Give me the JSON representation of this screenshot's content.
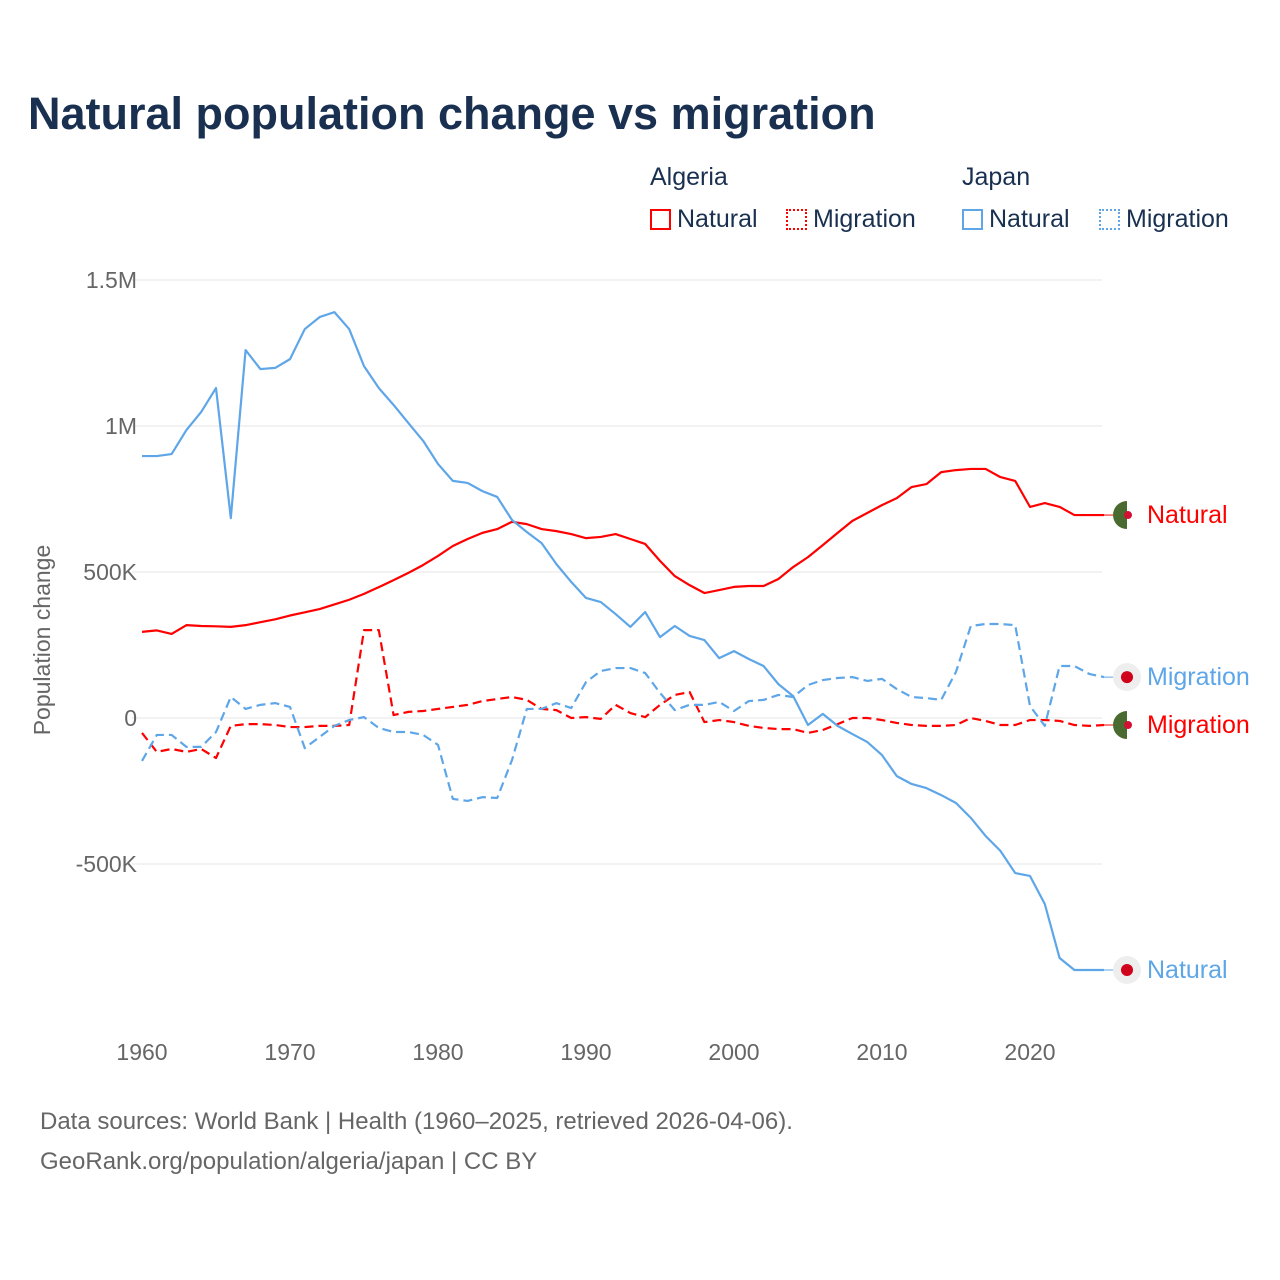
{
  "title": "Natural population change vs migration",
  "legend": {
    "groups": [
      {
        "name": "Algeria",
        "items": [
          "Natural",
          "Migration"
        ]
      },
      {
        "name": "Japan",
        "items": [
          "Natural",
          "Migration"
        ]
      }
    ]
  },
  "footer": {
    "line1": "Data sources: World Bank | Health (1960–2025, retrieved 2026-04-06).",
    "line2": "GeoRank.org/population/algeria/japan | CC BY"
  },
  "colors": {
    "algeria": "#ff0000",
    "japan": "#5ea6e8",
    "title": "#1a3050"
  },
  "chart_data": {
    "type": "line",
    "title": "Natural population change vs migration",
    "xlabel": "",
    "ylabel": "Population change",
    "xlim": [
      1960,
      2025
    ],
    "ylim": [
      -1000000,
      1500000
    ],
    "yticks": [
      {
        "v": 1500000,
        "label": "1.5M"
      },
      {
        "v": 1000000,
        "label": "1M"
      },
      {
        "v": 500000,
        "label": "500K"
      },
      {
        "v": 0,
        "label": "0"
      },
      {
        "v": -500000,
        "label": "-500K"
      }
    ],
    "xticks": [
      1960,
      1970,
      1980,
      1990,
      2000,
      2010,
      2020
    ],
    "x_start": 1960,
    "series": [
      {
        "name": "Algeria Natural",
        "country": "algeria",
        "dash": false,
        "end_label": "Natural",
        "values": [
          295,
          300,
          288,
          318,
          315,
          314,
          312,
          318,
          328,
          338,
          351,
          362,
          373,
          389,
          405,
          425,
          448,
          472,
          497,
          524,
          555,
          589,
          613,
          634,
          647,
          672,
          664,
          647,
          640,
          630,
          616,
          620,
          630,
          613,
          596,
          538,
          486,
          455,
          428,
          438,
          449,
          452,
          452,
          476,
          517,
          551,
          592,
          634,
          675,
          702,
          729,
          753,
          791,
          801,
          842,
          849,
          853,
          853,
          825,
          812,
          723,
          736,
          723,
          695,
          695,
          695
        ]
      },
      {
        "name": "Algeria Migration",
        "country": "algeria",
        "dash": true,
        "end_label": "Migration",
        "values": [
          -51,
          -116,
          -106,
          -116,
          -106,
          -137,
          -27,
          -21,
          -21,
          -24,
          -31,
          -31,
          -27,
          -27,
          -24,
          301,
          301,
          10,
          21,
          24,
          31,
          38,
          45,
          58,
          65,
          72,
          62,
          31,
          27,
          0,
          3,
          -3,
          45,
          17,
          3,
          45,
          79,
          89,
          -14,
          -7,
          -14,
          -27,
          -34,
          -38,
          -38,
          -51,
          -41,
          -21,
          0,
          0,
          -7,
          -17,
          -24,
          -27,
          -27,
          -24,
          0,
          -10,
          -24,
          -24,
          -7,
          -7,
          -10,
          -24,
          -27,
          -24
        ]
      },
      {
        "name": "Japan Natural",
        "country": "japan",
        "dash": false,
        "end_label": "Natural",
        "values": [
          897,
          897,
          904,
          986,
          1048,
          1130,
          685,
          1260,
          1195,
          1199,
          1229,
          1332,
          1373,
          1390,
          1332,
          1205,
          1130,
          1072,
          1010,
          949,
          870,
          812,
          805,
          777,
          757,
          678,
          637,
          599,
          527,
          466,
          411,
          397,
          356,
          312,
          363,
          277,
          315,
          281,
          267,
          205,
          229,
          202,
          178,
          116,
          75,
          -24,
          14,
          -27,
          -55,
          -82,
          -127,
          -199,
          -226,
          -240,
          -264,
          -291,
          -342,
          -404,
          -455,
          -531,
          -541,
          -637,
          -822,
          -863,
          -863,
          -863
        ]
      },
      {
        "name": "Japan Migration",
        "country": "japan",
        "dash": true,
        "end_label": "Migration",
        "values": [
          -147,
          -58,
          -58,
          -99,
          -99,
          -48,
          72,
          31,
          45,
          51,
          38,
          -103,
          -65,
          -27,
          -7,
          3,
          -34,
          -48,
          -48,
          -58,
          -92,
          -277,
          -284,
          -271,
          -274,
          -144,
          31,
          31,
          51,
          34,
          123,
          161,
          171,
          171,
          154,
          86,
          27,
          45,
          45,
          55,
          24,
          58,
          62,
          79,
          72,
          113,
          130,
          137,
          140,
          127,
          134,
          99,
          72,
          68,
          62,
          158,
          315,
          322,
          322,
          318,
          41,
          -27,
          178,
          178,
          151,
          140
        ]
      }
    ],
    "value_unit": "thousands"
  }
}
